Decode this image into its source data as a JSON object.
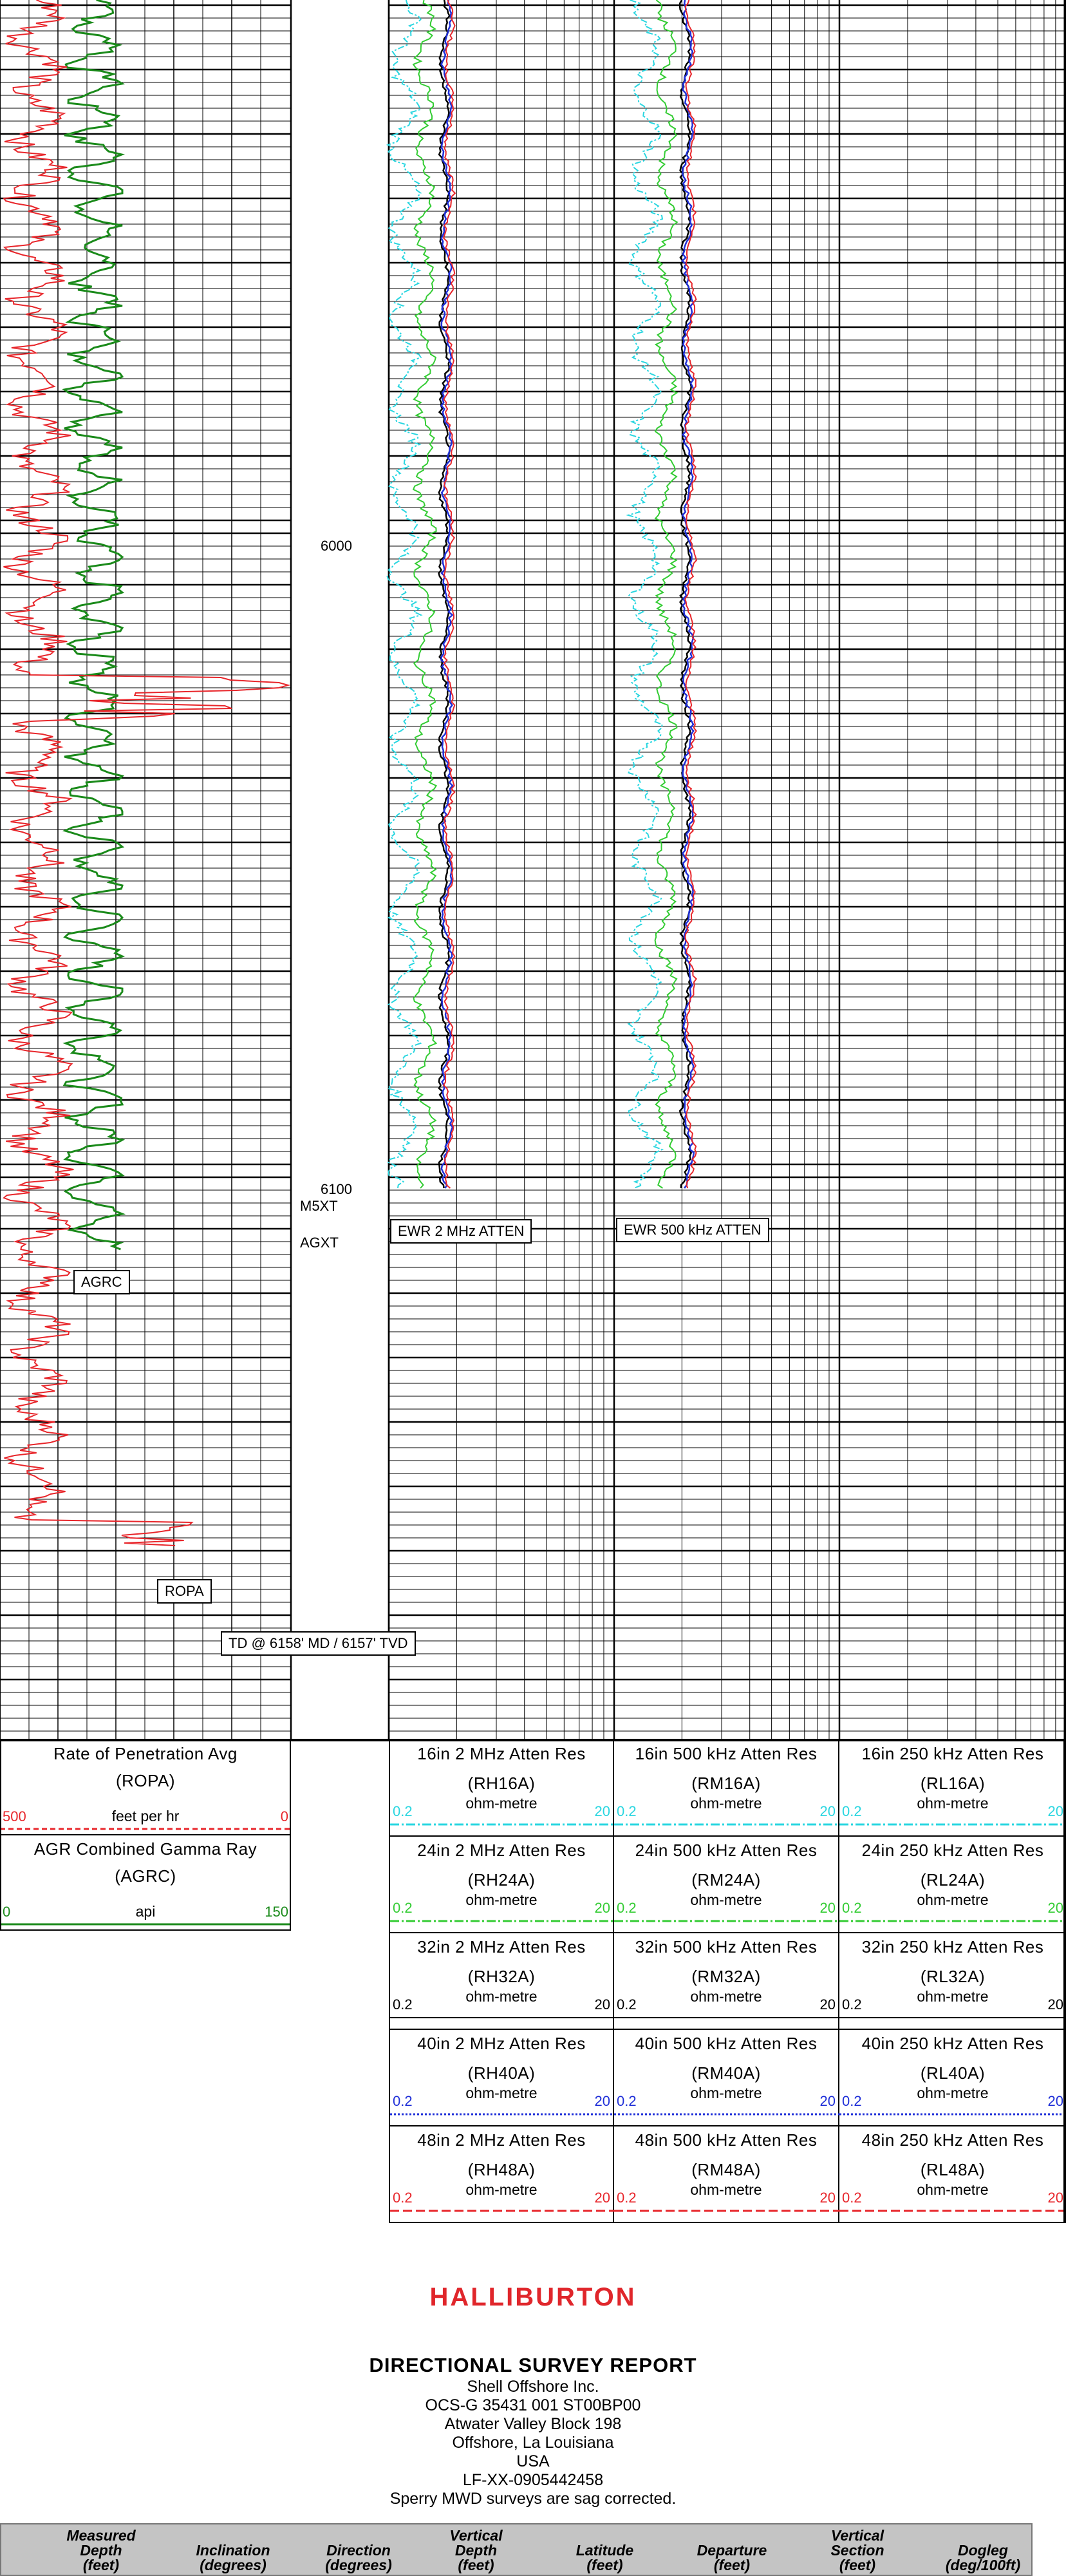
{
  "depth_labels": [
    "6000",
    "6100"
  ],
  "formation_picks": [
    "M5XT",
    "AGXT"
  ],
  "curve_labels": {
    "agrc": "AGRC",
    "ropa": "ROPA",
    "td": "TD @ 6158' MD / 6157' TVD",
    "ewr2": "EWR 2 MHz ATTEN",
    "ewr500": "EWR 500 kHz ATTEN"
  },
  "colors": {
    "rop": "#e8262b",
    "gamma": "#1a8a1a",
    "res16": "#29d6e0",
    "res24": "#33cc33",
    "res32": "#000000",
    "res40": "#1f2fd8",
    "res48": "#e8262b"
  },
  "left_headers": [
    {
      "title": "Rate of Penetration Avg",
      "mnemonic": "(ROPA)",
      "unit": "feet per hr",
      "lo": "500",
      "hi": "0",
      "color": "#e8262b",
      "dash": "8,5"
    },
    {
      "title": "AGR Combined Gamma Ray",
      "mnemonic": "(AGRC)",
      "unit": "api",
      "lo": "0",
      "hi": "150",
      "color": "#1a8a1a",
      "dash": ""
    }
  ],
  "res_headers": {
    "col_2mhz": [
      {
        "title": "16in 2 MHz Atten Res",
        "mnemonic": "(RH16A)",
        "unit": "ohm-metre",
        "lo": "0.2",
        "hi": "20"
      },
      {
        "title": "24in 2 MHz Atten Res",
        "mnemonic": "(RH24A)",
        "unit": "ohm-metre",
        "lo": "0.2",
        "hi": "20"
      },
      {
        "title": "32in 2 MHz Atten Res",
        "mnemonic": "(RH32A)",
        "unit": "ohm-metre",
        "lo": "0.2",
        "hi": "20"
      },
      {
        "title": "40in 2 MHz Atten Res",
        "mnemonic": "(RH40A)",
        "unit": "ohm-metre",
        "lo": "0.2",
        "hi": "20"
      },
      {
        "title": "48in 2 MHz Atten Res",
        "mnemonic": "(RH48A)",
        "unit": "ohm-metre",
        "lo": "0.2",
        "hi": "20"
      }
    ],
    "col_500khz": [
      {
        "title": "16in 500 kHz Atten Res",
        "mnemonic": "(RM16A)",
        "unit": "ohm-metre",
        "lo": "0.2",
        "hi": "20"
      },
      {
        "title": "24in 500 kHz Atten Res",
        "mnemonic": "(RM24A)",
        "unit": "ohm-metre",
        "lo": "0.2",
        "hi": "20"
      },
      {
        "title": "32in 500 kHz Atten Res",
        "mnemonic": "(RM32A)",
        "unit": "ohm-metre",
        "lo": "0.2",
        "hi": "20"
      },
      {
        "title": "40in 500 kHz Atten Res",
        "mnemonic": "(RM40A)",
        "unit": "ohm-metre",
        "lo": "0.2",
        "hi": "20"
      },
      {
        "title": "48in 500 kHz Atten Res",
        "mnemonic": "(RM48A)",
        "unit": "ohm-metre",
        "lo": "0.2",
        "hi": "20"
      }
    ],
    "col_250khz": [
      {
        "title": "16in 250 kHz Atten Res",
        "mnemonic": "(RL16A)",
        "unit": "ohm-metre",
        "lo": "0.2",
        "hi": "20"
      },
      {
        "title": "24in 250 kHz Atten Res",
        "mnemonic": "(RL24A)",
        "unit": "ohm-metre",
        "lo": "0.2",
        "hi": "20"
      },
      {
        "title": "32in 250 kHz Atten Res",
        "mnemonic": "(RL32A)",
        "unit": "ohm-metre",
        "lo": "0.2",
        "hi": "20"
      },
      {
        "title": "40in 250 kHz Atten Res",
        "mnemonic": "(RL40A)",
        "unit": "ohm-metre",
        "lo": "0.2",
        "hi": "20"
      },
      {
        "title": "48in 250 kHz Atten Res",
        "mnemonic": "(RL48A)",
        "unit": "ohm-metre",
        "lo": "0.2",
        "hi": "20"
      }
    ]
  },
  "report": {
    "logo": "HALLIBURTON",
    "title": "DIRECTIONAL SURVEY REPORT",
    "lines": [
      "Shell Offshore Inc.",
      "OCS-G 35431 001 ST00BP00",
      "Atwater Valley Block 198",
      "Offshore, La Louisiana",
      "USA",
      "LF-XX-0905442458",
      "Sperry MWD surveys are sag corrected."
    ],
    "columns": [
      [
        "Measured",
        "Depth",
        "(feet)"
      ],
      [
        "Inclination",
        "(degrees)"
      ],
      [
        "Direction",
        "(degrees)"
      ],
      [
        "Vertical",
        "Depth",
        "(feet)"
      ],
      [
        "Latitude",
        "(feet)"
      ],
      [
        "Departure",
        "(feet)"
      ],
      [
        "Vertical",
        "Section",
        "(feet)"
      ],
      [
        "Dogleg",
        "(deg/100ft)"
      ]
    ]
  }
}
